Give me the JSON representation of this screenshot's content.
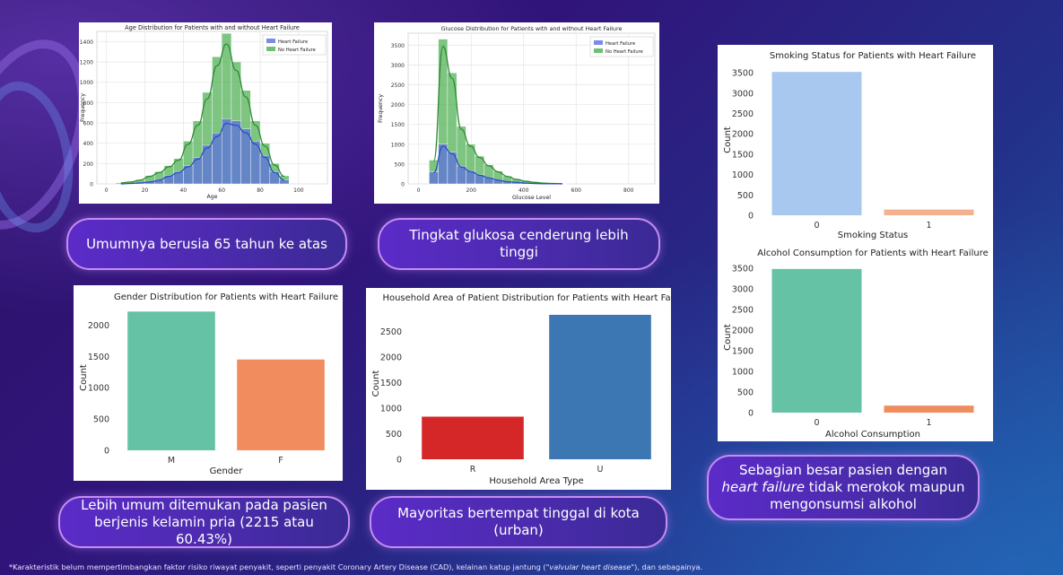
{
  "charts": {
    "age": {
      "chart_data": {
        "type": "bar",
        "title": "Age Distribution for Patients with and without Heart Failure",
        "xlabel": "Age",
        "ylabel": "Frequency",
        "xlim": [
          -5,
          115
        ],
        "ylim": [
          0,
          1500
        ],
        "xticks": [
          0,
          20,
          40,
          60,
          80,
          100
        ],
        "yticks": [
          0,
          200,
          400,
          600,
          800,
          1000,
          1200,
          1400
        ],
        "grid": true,
        "legend_position": "top-right",
        "bin_edges": [
          5,
          10,
          15,
          20,
          25,
          30,
          35,
          40,
          45,
          50,
          55,
          60,
          65,
          70,
          75,
          80,
          85,
          90,
          95
        ],
        "series": [
          {
            "name": "No Heart Failure",
            "color": "#4caf50",
            "values": [
              10,
              20,
              40,
              80,
              120,
              180,
              250,
              420,
              620,
              900,
              1250,
              1480,
              1200,
              920,
              620,
              400,
              200,
              80
            ]
          },
          {
            "name": "Heart Failure",
            "color": "#5b6ee1",
            "values": [
              0,
              5,
              10,
              20,
              40,
              80,
              120,
              180,
              260,
              380,
              500,
              640,
              620,
              540,
              420,
              280,
              120,
              40
            ]
          }
        ]
      }
    },
    "glucose": {
      "chart_data": {
        "type": "bar",
        "title": "Glucose Distribution for Patients with and without Heart Failure",
        "xlabel": "Glucose Level",
        "ylabel": "Frequency",
        "xlim": [
          -40,
          900
        ],
        "ylim": [
          0,
          3800
        ],
        "xticks": [
          0,
          200,
          400,
          600,
          800
        ],
        "yticks": [
          0,
          500,
          1000,
          1500,
          2000,
          2500,
          3000,
          3500
        ],
        "grid": true,
        "legend_position": "top-right",
        "bin_edges": [
          40,
          75,
          110,
          145,
          180,
          215,
          250,
          285,
          320,
          355,
          390,
          425,
          460,
          495,
          530,
          565
        ],
        "series": [
          {
            "name": "No Heart Failure",
            "color": "#4caf50",
            "values": [
              600,
              3650,
              2800,
              1450,
              1000,
              700,
              480,
              320,
              200,
              120,
              70,
              40,
              20,
              10,
              5
            ]
          },
          {
            "name": "Heart Failure",
            "color": "#5b6ee1",
            "values": [
              300,
              1000,
              800,
              450,
              330,
              230,
              160,
              100,
              60,
              40,
              20,
              10,
              5,
              3,
              2
            ]
          }
        ]
      }
    },
    "smoking": {
      "chart_data": {
        "type": "bar",
        "title": "Smoking Status for Patients with Heart Failure",
        "xlabel": "Smoking Status",
        "ylabel": "Count",
        "categories": [
          "0",
          "1"
        ],
        "values": [
          3520,
          140
        ],
        "colors": [
          "#a9c8ef",
          "#f2b28f"
        ],
        "ylim": [
          0,
          3700
        ],
        "yticks": [
          0,
          500,
          1000,
          1500,
          2000,
          2500,
          3000,
          3500
        ],
        "grid": false
      }
    },
    "alcohol": {
      "chart_data": {
        "type": "bar",
        "title": "Alcohol Consumption for Patients with Heart Failure",
        "xlabel": "Alcohol Consumption",
        "ylabel": "Count",
        "categories": [
          "0",
          "1"
        ],
        "values": [
          3480,
          170
        ],
        "colors": [
          "#66c2a5",
          "#f08c5e"
        ],
        "ylim": [
          0,
          3650
        ],
        "yticks": [
          0,
          500,
          1000,
          1500,
          2000,
          2500,
          3000,
          3500
        ],
        "grid": false
      }
    },
    "gender": {
      "chart_data": {
        "type": "bar",
        "title": "Gender Distribution for Patients with Heart Failure",
        "xlabel": "Gender",
        "ylabel": "Count",
        "categories": [
          "M",
          "F"
        ],
        "values": [
          2215,
          1450
        ],
        "colors": [
          "#66c2a5",
          "#f08c5e"
        ],
        "ylim": [
          0,
          2320
        ],
        "yticks": [
          0,
          500,
          1000,
          1500,
          2000
        ],
        "grid": false
      }
    },
    "household": {
      "chart_data": {
        "type": "bar",
        "title": "Household Area of Patient Distribution for Patients with Heart Failure",
        "xlabel": "Household Area Type",
        "ylabel": "Count",
        "categories": [
          "R",
          "U"
        ],
        "values": [
          835,
          2830
        ],
        "colors": [
          "#d62728",
          "#3c77b4"
        ],
        "ylim": [
          0,
          2970
        ],
        "yticks": [
          0,
          500,
          1000,
          1500,
          2000,
          2500
        ],
        "grid": false
      }
    }
  },
  "callouts": {
    "age": "Umumnya berusia 65 tahun ke atas",
    "glucose": "Tingkat glukosa cenderung lebih tinggi",
    "gender": "Lebih umum ditemukan pada pasien berjenis kelamin pria (2215 atau 60.43%)",
    "household": "Mayoritas bertempat tinggal di kota (urban)",
    "lifestyle_before": "Sebagian besar pasien dengan ",
    "lifestyle_italic": "heart failure",
    "lifestyle_after": " tidak merokok maupun mengonsumsi alkohol"
  },
  "footnote": {
    "before": "*Karakteristik belum mempertimbangkan faktor risiko riwayat penyakit, seperti penyakit Coronary Artery Disease (CAD), kelainan katup jantung (",
    "italic": "\"valvular heart disease\"",
    "after": "), dan sebagainya."
  }
}
